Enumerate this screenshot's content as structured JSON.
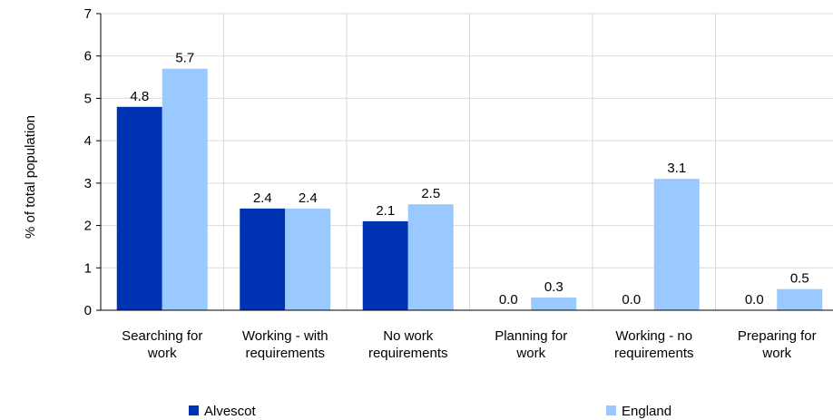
{
  "chart_data": {
    "type": "bar",
    "title": "",
    "xlabel": "",
    "ylabel": "% of total population",
    "ylim": [
      0,
      7
    ],
    "yticks": [
      0,
      1,
      2,
      3,
      4,
      5,
      6,
      7
    ],
    "grid": true,
    "legend_position": "bottom",
    "categories": [
      [
        "Searching for",
        "work"
      ],
      [
        "Working - with",
        "requirements"
      ],
      [
        "No work",
        "requirements"
      ],
      [
        "Planning for",
        "work"
      ],
      [
        "Working - no",
        "requirements"
      ],
      [
        "Preparing for",
        "work"
      ]
    ],
    "series": [
      {
        "name": "Alvescot",
        "color": "#0033b4",
        "values": [
          4.8,
          2.4,
          2.1,
          0.0,
          0.0,
          0.0
        ]
      },
      {
        "name": "England",
        "color": "#99c9ff",
        "values": [
          5.7,
          2.4,
          2.5,
          0.3,
          3.1,
          0.5
        ]
      }
    ]
  }
}
